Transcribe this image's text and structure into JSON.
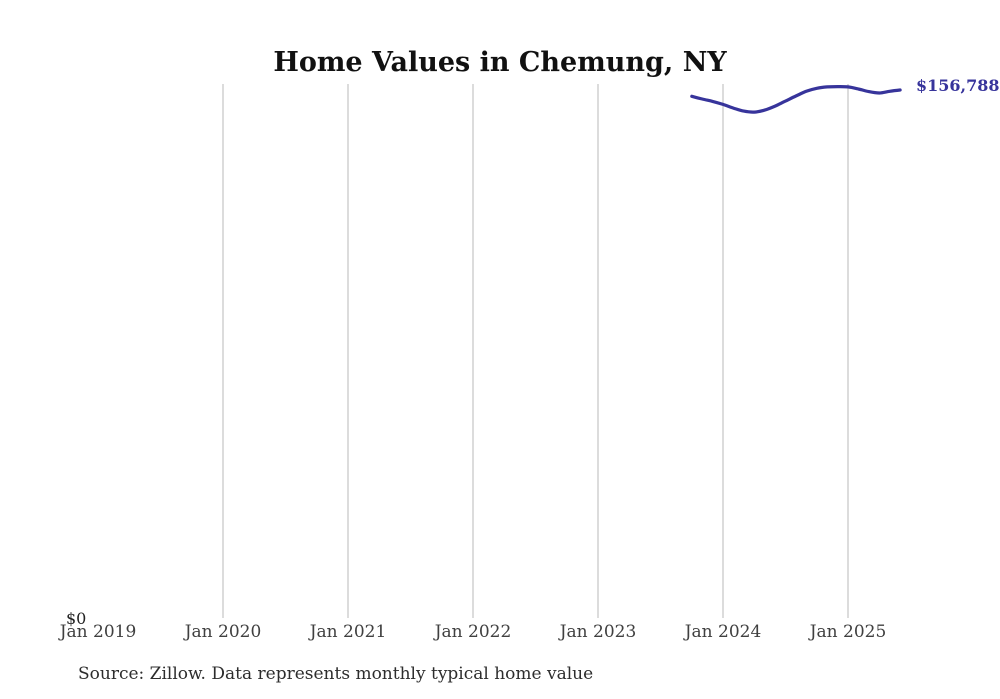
{
  "chart": {
    "title": "Home Values in Chemung, NY",
    "y_zero_label": "$0",
    "end_label": "$156,788",
    "source_note": "Source: Zillow. Data represents monthly typical home value",
    "colors": {
      "line": "#37349b",
      "end_label": "#37349b",
      "grid": "#d0d0d0",
      "title": "#111111",
      "tick_label": "#404040"
    }
  },
  "chart_data": {
    "type": "line",
    "title": "Home Values in Chemung, NY",
    "xlabel": "",
    "ylabel": "",
    "x_tick_labels": [
      "Jan 2019",
      "Jan 2020",
      "Jan 2021",
      "Jan 2022",
      "Jan 2023",
      "Jan 2024",
      "Jan 2025"
    ],
    "y_axis": {
      "min": 0,
      "min_label": "$0",
      "gridlines": "vertical-only"
    },
    "legend": "none",
    "annotations": [
      {
        "text": "$156,788",
        "position": "line-end",
        "note": "clipped at right edge of image"
      }
    ],
    "source_note": "Source: Zillow. Data represents monthly typical home value",
    "series": [
      {
        "name": "Monthly typical home value",
        "points": [
          {
            "date": "2023-10",
            "value": 154900
          },
          {
            "date": "2023-11",
            "value": 154100
          },
          {
            "date": "2023-12",
            "value": 153400
          },
          {
            "date": "2024-01",
            "value": 152500
          },
          {
            "date": "2024-02",
            "value": 151400
          },
          {
            "date": "2024-03",
            "value": 150500
          },
          {
            "date": "2024-04",
            "value": 150200
          },
          {
            "date": "2024-05",
            "value": 150800
          },
          {
            "date": "2024-06",
            "value": 152000
          },
          {
            "date": "2024-07",
            "value": 153500
          },
          {
            "date": "2024-08",
            "value": 155000
          },
          {
            "date": "2024-09",
            "value": 156400
          },
          {
            "date": "2024-10",
            "value": 157300
          },
          {
            "date": "2024-11",
            "value": 157700
          },
          {
            "date": "2024-12",
            "value": 157800
          },
          {
            "date": "2025-01",
            "value": 157700
          },
          {
            "date": "2025-02",
            "value": 157100
          },
          {
            "date": "2025-03",
            "value": 156300
          },
          {
            "date": "2025-04",
            "value": 155900
          },
          {
            "date": "2025-05",
            "value": 156400
          },
          {
            "date": "2025-06",
            "value": 156788
          }
        ]
      }
    ]
  }
}
